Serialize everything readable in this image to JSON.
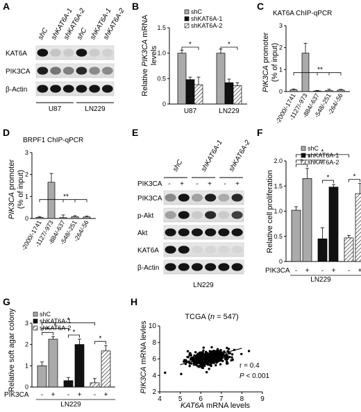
{
  "panels": {
    "A": {
      "letter": "A",
      "lane_labels": [
        "shC",
        "shKAT6A-1",
        "shKAT6A-2",
        "shC",
        "shKAT6A-1",
        "shKAT6A-2"
      ],
      "rows": [
        "KAT6A",
        "PIK3CA",
        "β-Actin"
      ],
      "groups": [
        "U87",
        "LN229"
      ],
      "band_intensity": [
        [
          1.0,
          0.18,
          0.15,
          1.0,
          0.15,
          0.12
        ],
        [
          0.95,
          0.55,
          0.5,
          0.9,
          0.45,
          0.45
        ],
        [
          1.0,
          1.0,
          1.0,
          1.0,
          1.0,
          1.0
        ]
      ]
    },
    "B": {
      "letter": "B",
      "ylabel_italic": "PIK3CA",
      "ylabel_pre": "Relative ",
      "ylabel_post": " mRNA",
      "ylabel_line2": "levels",
      "sig": [
        "*",
        "*"
      ]
    },
    "C": {
      "letter": "C",
      "title": "KAT6A ChIP-qPCR",
      "ylabel_italic": "PIK3CA",
      "ylabel_post": " promoter",
      "ylabel_line2": "(% of input)",
      "sig": "**"
    },
    "D": {
      "letter": "D",
      "title": "BRPF1 ChIP-qPCR",
      "ylabel_italic": "PIK3CA",
      "ylabel_post": " promoter",
      "ylabel_line2": "(% of input)",
      "sig": "**"
    },
    "E": {
      "letter": "E",
      "group_labels": [
        "shC",
        "shKAT6A-1",
        "shKAT6A-2"
      ],
      "treatment_label": "PIK3CA",
      "signs": [
        "-",
        "+",
        "-",
        "+",
        "-",
        "+"
      ],
      "rows": [
        "PIK3CA",
        "p-Akt",
        "Akt",
        "KAT6A",
        "β-Actin"
      ],
      "cell_line": "LN229",
      "band_intensity": [
        [
          0.45,
          1.0,
          0.35,
          0.95,
          0.3,
          0.9
        ],
        [
          0.35,
          1.0,
          0.15,
          0.9,
          0.15,
          0.8
        ],
        [
          1.0,
          1.0,
          1.0,
          1.0,
          1.0,
          1.0
        ],
        [
          1.0,
          1.0,
          0.1,
          0.1,
          0.1,
          0.1
        ],
        [
          1.0,
          1.0,
          1.0,
          1.0,
          1.0,
          1.0
        ]
      ]
    },
    "F": {
      "letter": "F",
      "ylabel": "Relative cell proliferation",
      "treatment_label": "PIK3CA",
      "signs": [
        "-",
        "+",
        "-",
        "+",
        "-",
        "+"
      ],
      "cell_line": "LN229",
      "sig": [
        "*",
        "*",
        "*",
        "*",
        "*"
      ]
    },
    "G": {
      "letter": "G",
      "ylabel": "Relative soft agar colony",
      "treatment_label": "PIK3CA",
      "signs": [
        "-",
        "+",
        "-",
        "+",
        "-",
        "+"
      ],
      "cell_line": "LN229",
      "sig": [
        "*",
        "*",
        "*",
        "*",
        "*"
      ]
    },
    "H": {
      "letter": "H",
      "title_pre": "TCGA (",
      "title_n": "n",
      "title_post": " = 547)",
      "ylabel_italic": "PIK3CA",
      "ylabel_post": " mRNA levles",
      "xlabel_italic": "KAT6A",
      "xlabel_post": " mRNA levels",
      "r_text": "r = 0.4",
      "p_italic": "P",
      "p_post": " < 0.001"
    }
  },
  "colors": {
    "shC": "#aaaaaa",
    "shKAT6A-1": "#111111",
    "shKAT6A-2": "hatch"
  },
  "chart_data": [
    {
      "panel": "B",
      "type": "bar",
      "categories": [
        "U87",
        "LN229"
      ],
      "series": [
        {
          "name": "shC",
          "values": [
            1.0,
            1.0
          ],
          "errors": [
            0.06,
            0.08
          ]
        },
        {
          "name": "shKAT6A-1",
          "values": [
            0.48,
            0.42
          ],
          "errors": [
            0.05,
            0.07
          ]
        },
        {
          "name": "shKAT6A-2",
          "values": [
            0.38,
            0.36
          ],
          "errors": [
            0.15,
            0.06
          ]
        }
      ],
      "ylim": [
        0,
        1.5
      ],
      "yticks": [
        0,
        0.5,
        1.0,
        1.5
      ],
      "ytick_labels": [
        "0",
        "0.5",
        "1.0",
        "1.5"
      ],
      "legend": "top-right"
    },
    {
      "panel": "C",
      "type": "bar",
      "categories": [
        "-2000/-1741",
        "-1127/-973",
        "-884/-637",
        "-548/-251",
        "-264/-56"
      ],
      "values": [
        0.08,
        1.75,
        0.03,
        0.05,
        0.07
      ],
      "errors": [
        0.04,
        0.45,
        0.02,
        0.06,
        0.03
      ],
      "ylim": [
        0,
        3
      ],
      "yticks": [
        0,
        1,
        2,
        3
      ]
    },
    {
      "panel": "D",
      "type": "bar",
      "categories": [
        "-2000/-1741",
        "-1127/-973",
        "-884/-637",
        "-548/-251",
        "-264/-56"
      ],
      "values": [
        0.05,
        1.65,
        0.04,
        0.08,
        0.07
      ],
      "errors": [
        0.04,
        0.4,
        0.12,
        0.05,
        0.04
      ],
      "ylim": [
        0,
        3
      ],
      "yticks": [
        0,
        1,
        2,
        3
      ]
    },
    {
      "panel": "F",
      "type": "bar",
      "categories": [
        "-",
        "+",
        "-",
        "+",
        "-",
        "+"
      ],
      "series_per_bar": [
        "shC",
        "shC",
        "shKAT6A-1",
        "shKAT6A-1",
        "shKAT6A-2",
        "shKAT6A-2"
      ],
      "values": [
        1.02,
        1.65,
        0.45,
        1.48,
        0.47,
        1.35
      ],
      "errors": [
        0.07,
        0.2,
        0.22,
        0.05,
        0.05,
        0.2
      ],
      "ylim": [
        0,
        2.0
      ],
      "yticks": [
        0,
        0.5,
        1.0,
        1.5,
        2.0
      ],
      "ytick_labels": [
        "0",
        "0.5",
        "1.0",
        "1.5",
        "2.0"
      ],
      "legend": "top-left"
    },
    {
      "panel": "G",
      "type": "bar",
      "categories": [
        "-",
        "+",
        "-",
        "+",
        "-",
        "+"
      ],
      "series_per_bar": [
        "shC",
        "shC",
        "shKAT6A-1",
        "shKAT6A-1",
        "shKAT6A-2",
        "shKAT6A-2"
      ],
      "values": [
        1.0,
        2.25,
        0.3,
        2.0,
        0.2,
        1.7
      ],
      "errors": [
        0.18,
        0.12,
        0.15,
        0.25,
        0.2,
        0.25
      ],
      "ylim": [
        0,
        3
      ],
      "yticks": [
        0,
        1,
        2,
        3
      ],
      "legend": "top-left"
    },
    {
      "panel": "H",
      "type": "scatter",
      "xlim": [
        4,
        9
      ],
      "ylim": [
        2,
        10
      ],
      "xticks": [
        4,
        5,
        6,
        7,
        8,
        9
      ],
      "yticks": [
        2,
        4,
        6,
        8,
        10
      ],
      "trend": {
        "x": [
          5,
          8
        ],
        "y": [
          5.3,
          7.3
        ]
      },
      "cloud": {
        "n": 547,
        "x_center": 6.4,
        "x_sd": 0.5,
        "y_center": 6.1,
        "y_sd": 0.45,
        "r": 0.4
      }
    }
  ]
}
